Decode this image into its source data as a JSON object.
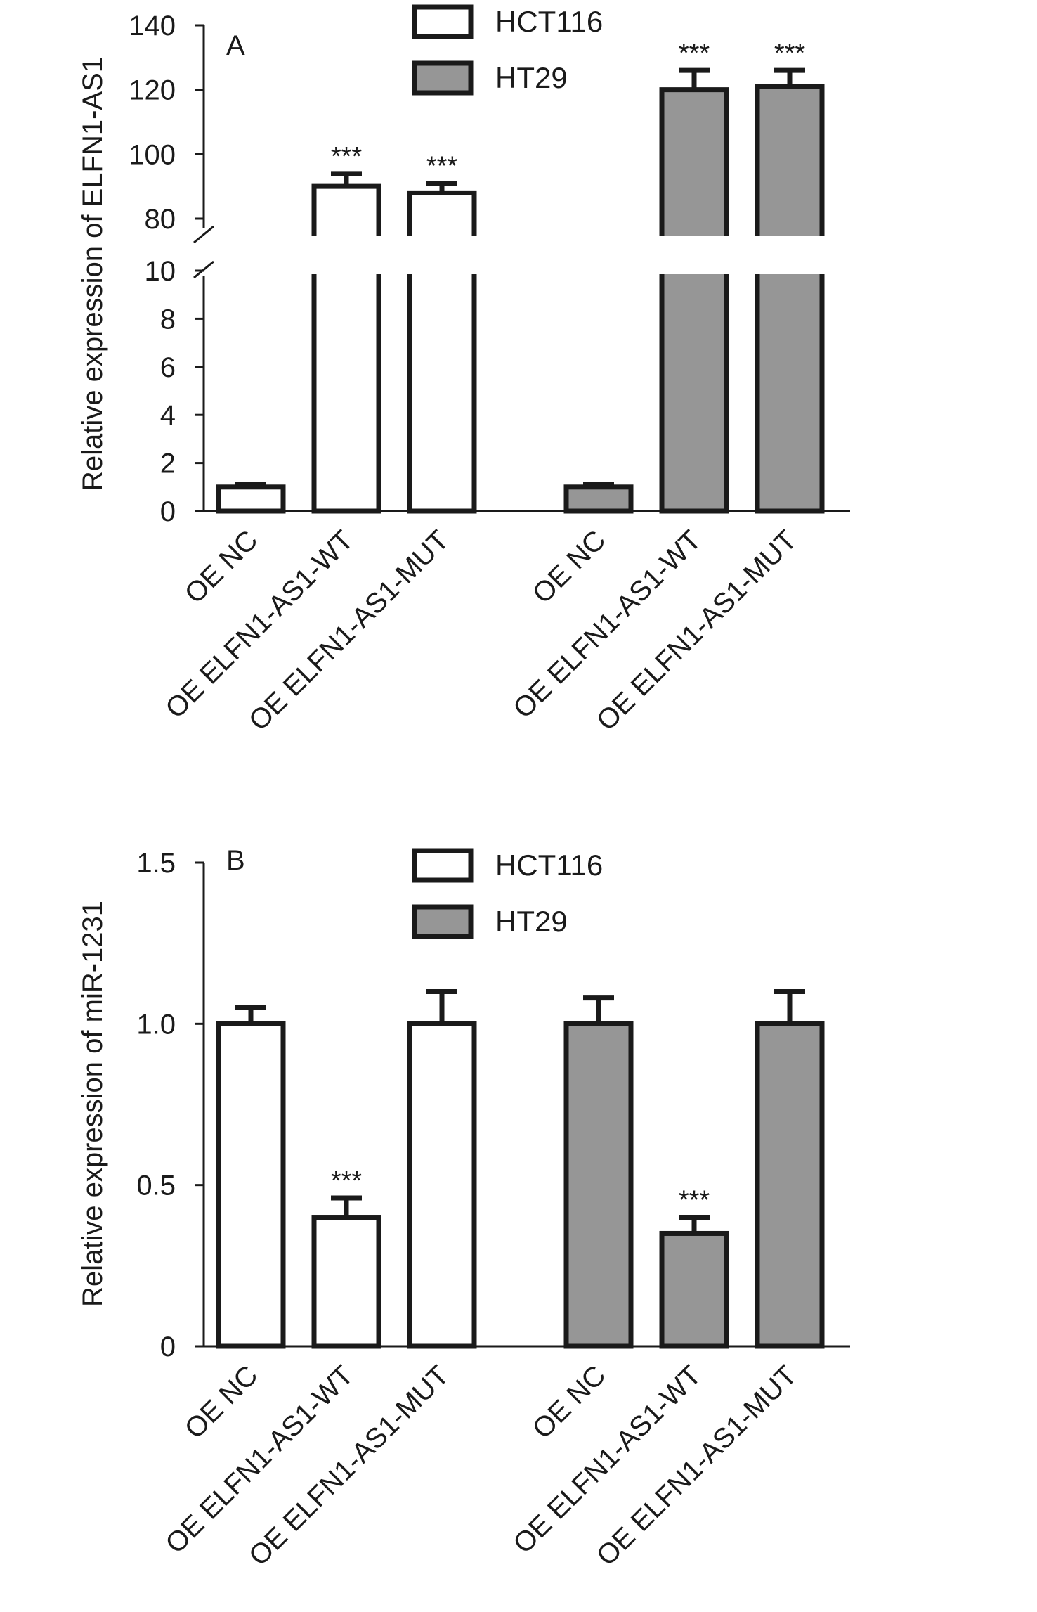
{
  "colors": {
    "hct116_fill": "#ffffff",
    "ht29_fill": "#969696",
    "outline": "#1a1a1a"
  },
  "chart_data": [
    {
      "type": "bar",
      "panel_label": "A",
      "ylabel": "Relative expression of ELFN1-AS1",
      "axis_break": {
        "lower": [
          0,
          10
        ],
        "upper": [
          80,
          140
        ]
      },
      "yticks_lower": [
        "0",
        "2",
        "4",
        "6",
        "8",
        "10"
      ],
      "yticks_upper": [
        "80",
        "100",
        "120",
        "140"
      ],
      "legend": {
        "position": "top-center",
        "entries": [
          "HCT116",
          "HT29"
        ]
      },
      "categories": [
        "OE NC",
        "OE ELFN1-AS1-WT",
        "OE ELFN1-AS1-MUT"
      ],
      "series": [
        {
          "name": "HCT116",
          "values": [
            1.0,
            90,
            88
          ],
          "errors": [
            0.1,
            4,
            3
          ],
          "annotations": [
            "",
            "***",
            "***"
          ]
        },
        {
          "name": "HT29",
          "values": [
            1.0,
            120,
            121
          ],
          "errors": [
            0.1,
            6,
            5
          ],
          "annotations": [
            "",
            "***",
            "***"
          ]
        }
      ]
    },
    {
      "type": "bar",
      "panel_label": "B",
      "ylabel": "Relative expression of miR-1231",
      "ylim": [
        0,
        1.5
      ],
      "yticks": [
        "0",
        "0.5",
        "1.0",
        "1.5"
      ],
      "legend": {
        "position": "top-center",
        "entries": [
          "HCT116",
          "HT29"
        ]
      },
      "categories": [
        "OE NC",
        "OE ELFN1-AS1-WT",
        "OE ELFN1-AS1-MUT"
      ],
      "series": [
        {
          "name": "HCT116",
          "values": [
            1.0,
            0.4,
            1.0
          ],
          "errors": [
            0.05,
            0.06,
            0.1
          ],
          "annotations": [
            "",
            "***",
            ""
          ]
        },
        {
          "name": "HT29",
          "values": [
            1.0,
            0.35,
            1.0
          ],
          "errors": [
            0.08,
            0.05,
            0.1
          ],
          "annotations": [
            "",
            "***",
            ""
          ]
        }
      ]
    }
  ]
}
